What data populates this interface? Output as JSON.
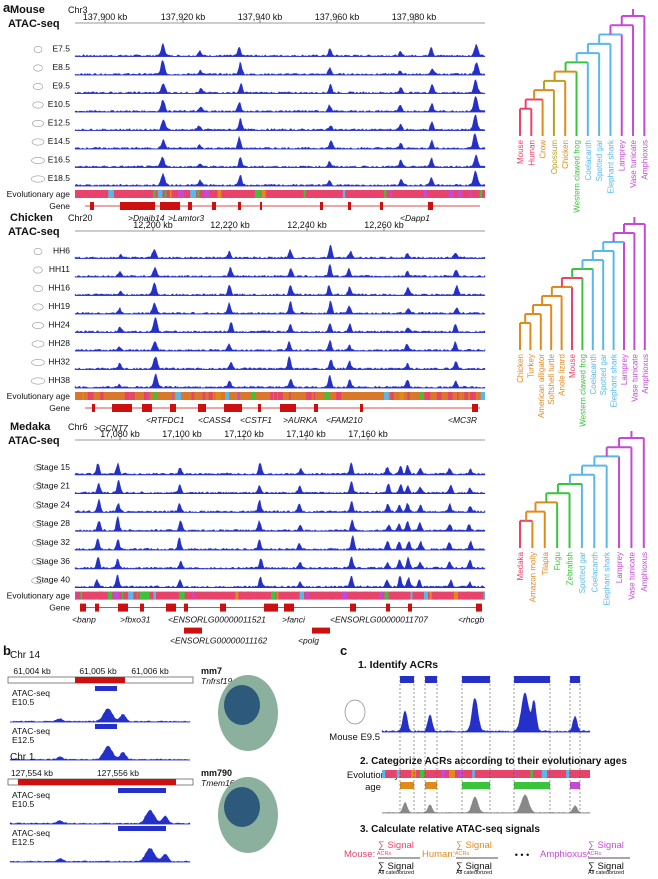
{
  "panel_labels": {
    "a": "a",
    "b": "b",
    "c": "c"
  },
  "panels": [
    {
      "species": "Mouse",
      "assay": "ATAC-seq",
      "chrom": "Chr3",
      "coords": [
        "137,900 kb",
        "137,920 kb",
        "137,940 kb",
        "137,960 kb",
        "137,980 kb"
      ],
      "stages": [
        "E7.5",
        "E8.5",
        "E9.5",
        "E10.5",
        "E12.5",
        "E14.5",
        "E16.5",
        "E18.5"
      ],
      "genes": [
        {
          "label": ">Dnajb14",
          "italic": true
        },
        {
          "label": ">Lamtor3",
          "italic": true
        },
        {
          "label": "<Dapp1",
          "italic": true
        }
      ],
      "tree_taxa": [
        "Mouse",
        "Human",
        "Crow",
        "Opossum",
        "Chicken",
        "Western clawed frog",
        "Coelacanth",
        "Spotted gar",
        "Elephant shark",
        "Lamprey",
        "Vase tunicate",
        "Amphioxus"
      ]
    },
    {
      "species": "Chicken",
      "assay": "ATAC-seq",
      "chrom": "Chr20",
      "coords": [
        "12,200 kb",
        "12,220 kb",
        "12,240 kb",
        "12,260 kb"
      ],
      "stages": [
        "HH6",
        "HH11",
        "HH16",
        "HH19",
        "HH24",
        "HH28",
        "HH32",
        "HH38"
      ],
      "genes": [
        {
          "label": ">GCNT7"
        },
        {
          "label": "<RTFDC1"
        },
        {
          "label": "<CASS4"
        },
        {
          "label": "<CSTF1"
        },
        {
          "label": ">AURKA"
        },
        {
          "label": "<FAM210"
        },
        {
          "label": "<MC3R"
        }
      ],
      "tree_taxa": [
        "Chicken",
        "Turkey",
        "American alligator",
        "Softshell turtle",
        "Anole lizard",
        "Mouse",
        "Western clawed frog",
        "Coelacanth",
        "Spotted gar",
        "Elephant shark",
        "Lamprey",
        "Vase tunicate",
        "Amphioxus"
      ]
    },
    {
      "species": "Medaka",
      "assay": "ATAC-seq",
      "chrom": "Chr6",
      "coords": [
        "17,080 kb",
        "17,100 kb",
        "17,120 kb",
        "17,140 kb",
        "17,160 kb"
      ],
      "stages": [
        "Stage 15",
        "Stage 21",
        "Stage 24",
        "Stage 28",
        "Stage 32",
        "Stage 36",
        "Stage 40"
      ],
      "genes": [
        {
          "label": "<banp"
        },
        {
          "label": ">fbxo31"
        },
        {
          "label": "<ENSORLG00000011521"
        },
        {
          "label": ">fanci"
        },
        {
          "label": "<ENSORLG00000011707"
        },
        {
          "label": "<rhcgb"
        },
        {
          "label": "<ENSORLG00000011162"
        },
        {
          "label": "<polg"
        }
      ],
      "tree_taxa": [
        "Medaka",
        "Amazon molly",
        "Tilapia",
        "Fugu",
        "Zebrafish",
        "Spotted gar",
        "Coelacanth",
        "Elephant shark",
        "Lamprey",
        "Vase tunicate",
        "Amphioxus"
      ]
    }
  ],
  "track_labels": {
    "evo": "Evolutionary age",
    "gene": "Gene"
  },
  "panel_b": [
    {
      "chrom": "Chr 14",
      "coords": [
        "61,004 kb",
        "61,005 kb",
        "61,006 kb"
      ],
      "enhancer": "mm7",
      "gene": "Tnfrsf19",
      "tracks": [
        {
          "assay": "ATAC-seq",
          "stage": "E10.5"
        },
        {
          "assay": "ATAC-seq",
          "stage": "E12.5"
        }
      ]
    },
    {
      "chrom": "Chr 1",
      "coords": [
        "127,554 kb",
        "127,556 kb"
      ],
      "enhancer": "mm790",
      "gene": "Tmem163",
      "tracks": [
        {
          "assay": "ATAC-seq",
          "stage": "E10.5"
        },
        {
          "assay": "ATAC-seq",
          "stage": "E12.5"
        }
      ]
    }
  ],
  "panel_c": {
    "step1": "1. Identify ACRs",
    "sample": "Mouse E9.5",
    "step2": "2. Categorize ACRs according to their evolutionary ages",
    "evo_label_1": "Evolutionary",
    "evo_label_2": "age",
    "step3": "3. Calculate relative ATAC-seq signals",
    "formula": [
      {
        "species": "Mouse:",
        "num": "∑ Signal",
        "sub": "ACRs",
        "den": "∑ Signal",
        "note": "All categorized",
        "color": "#e8436b"
      },
      {
        "species": "Human:",
        "num": "∑ Signal",
        "sub": "ACRs",
        "den": "∑ Signal",
        "note": "All categorized",
        "color": "#e08a1c"
      },
      {
        "species": "Amphioxus:",
        "num": "∑ Signal",
        "sub": "ACRs",
        "den": "∑ Signal",
        "note": "All categorized",
        "color": "#c44ad6"
      }
    ],
    "ellipsis": "• • •"
  },
  "colors": {
    "signal": "#2430c8",
    "mammal": "#e8436b",
    "bird": "#e08a1c",
    "tetrapod": "#39c43c",
    "fish": "#5ab8e8",
    "olig": "#c44ad6",
    "gene": "#cc1010"
  }
}
